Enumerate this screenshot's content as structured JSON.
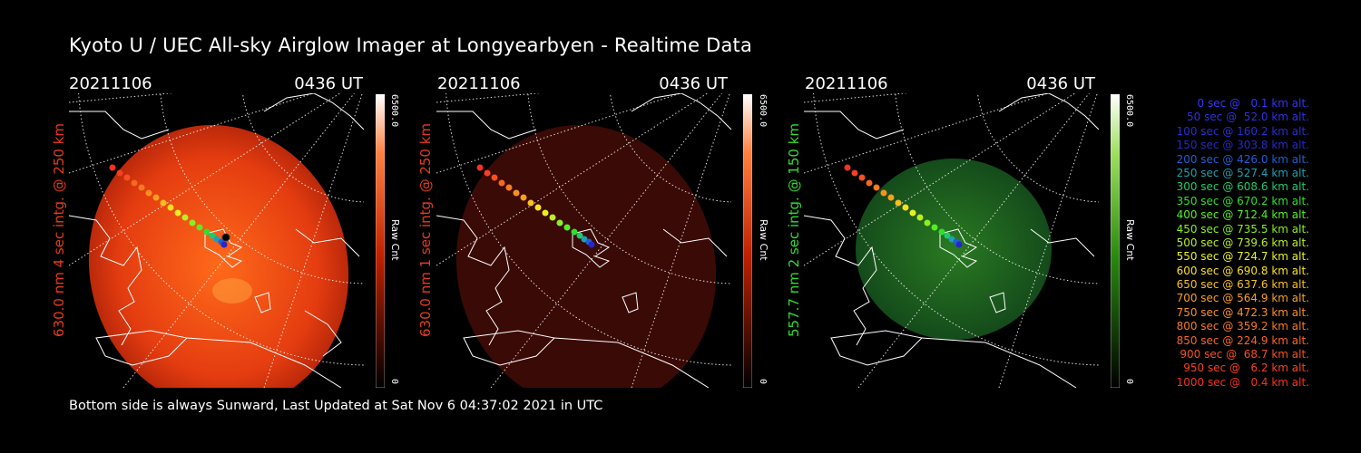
{
  "title": "Kyoto U / UEC All-sky Airglow Imager at Longyearbyen - Realtime Data",
  "footer": "Bottom side is always Sunward, Last Updated at Sat Nov  6 04:37:02 2021 in UTC",
  "panels": [
    {
      "date": "20211106",
      "time": "0436 UT",
      "ylabel": "630.0 nm 4 sec intg. @ 250 km",
      "ylabel_color": "#e53c1c",
      "colorbar_max": "6500.0",
      "colorbar_min": "0",
      "colorbar_label": "Raw Cnt",
      "colorbar_palette": "red"
    },
    {
      "date": "20211106",
      "time": "0436 UT",
      "ylabel": "630.0 nm 1 sec intg. @ 250 km",
      "ylabel_color": "#e53c1c",
      "colorbar_max": "6500.0",
      "colorbar_min": "0",
      "colorbar_label": "Raw Cnt",
      "colorbar_palette": "red"
    },
    {
      "date": "20211106",
      "time": "0436 UT",
      "ylabel": "557.7 nm 2 sec intg. @ 150 km",
      "ylabel_color": "#2fdc2f",
      "colorbar_max": "6500.0",
      "colorbar_min": "0",
      "colorbar_label": "Raw Cnt",
      "colorbar_palette": "green"
    }
  ],
  "legend": [
    {
      "text": "0 sec @   0.1 km alt.",
      "color": "#3333ff"
    },
    {
      "text": "50 sec @  52.0 km alt.",
      "color": "#2f2fe8"
    },
    {
      "text": "100 sec @ 160.2 km alt.",
      "color": "#2b2bd8"
    },
    {
      "text": "150 sec @ 303.8 km alt.",
      "color": "#2727c8"
    },
    {
      "text": "200 sec @ 426.0 km alt.",
      "color": "#1f5fd8"
    },
    {
      "text": "250 sec @ 527.4 km alt.",
      "color": "#1fa0b0"
    },
    {
      "text": "300 sec @ 608.6 km alt.",
      "color": "#22c870"
    },
    {
      "text": "350 sec @ 670.2 km alt.",
      "color": "#2fe02f"
    },
    {
      "text": "400 sec @ 712.4 km alt.",
      "color": "#55ee22"
    },
    {
      "text": "450 sec @ 735.5 km alt.",
      "color": "#88f022"
    },
    {
      "text": "500 sec @ 739.6 km alt.",
      "color": "#b8f022"
    },
    {
      "text": "550 sec @ 724.7 km alt.",
      "color": "#e8f022"
    },
    {
      "text": "600 sec @ 690.8 km alt.",
      "color": "#f8e020"
    },
    {
      "text": "650 sec @ 637.6 km alt.",
      "color": "#f8c020"
    },
    {
      "text": "700 sec @ 564.9 km alt.",
      "color": "#f8a020"
    },
    {
      "text": "750 sec @ 472.3 km alt.",
      "color": "#f89020"
    },
    {
      "text": "800 sec @ 359.2 km alt.",
      "color": "#f87a20"
    },
    {
      "text": "850 sec @ 224.9 km alt.",
      "color": "#f86620"
    },
    {
      "text": "900 sec @  68.7 km alt.",
      "color": "#f85020"
    },
    {
      "text": "950 sec @   6.2 km alt.",
      "color": "#f84020"
    },
    {
      "text": "1000 sec @   0.4 km alt.",
      "color": "#f83020"
    }
  ]
}
